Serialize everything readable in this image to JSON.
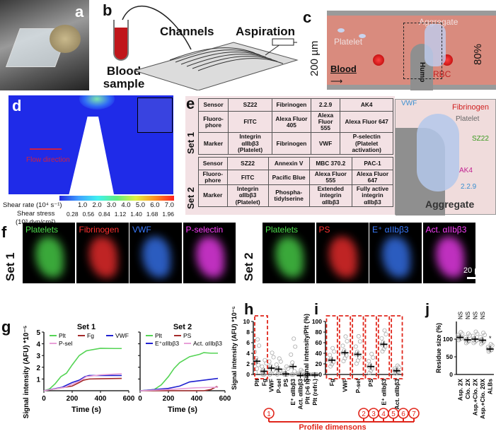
{
  "panels": {
    "a": {
      "label": "a"
    },
    "b": {
      "label": "b",
      "blood_sample": "Blood sample",
      "channels": "Channels",
      "aspiration": "Aspiration"
    },
    "c": {
      "label": "c",
      "platelet": "Platelet",
      "aggregate": "Aggregate",
      "blood": "Blood",
      "hump": "Hump",
      "rbc": "RBC",
      "height": "200 µm",
      "percent": "80%"
    },
    "d": {
      "label": "d",
      "flow_direction": "Flow direction",
      "shear_rate_label": "Shear rate (10⁴ s⁻¹)",
      "shear_rate_ticks": [
        "1.0",
        "2.0",
        "3.0",
        "4.0",
        "5.0",
        "6.0",
        "7.0"
      ],
      "shear_stress_label": "Shear stress",
      "shear_stress_unit": "(10³ dyn/cm²)",
      "shear_stress_ticks": [
        "0.28",
        "0.56",
        "0.84",
        "1.12",
        "1.40",
        "1.68",
        "1.96"
      ]
    },
    "e": {
      "label": "e",
      "set1": {
        "title": "Set 1",
        "rows": [
          [
            "Sensor",
            "SZ22",
            "Fibrinogen",
            "2.2.9",
            "AK4"
          ],
          [
            "Fluoro-phore",
            "FITC",
            "Alexa Fluor 405",
            "Alexa Fluor 555",
            "Alexa Fluor 647"
          ],
          [
            "Marker",
            "Integrin αIIbβ3 (Platelet)",
            "Fibrinogen",
            "VWF",
            "P-selectin (Platelet activation)"
          ]
        ]
      },
      "set2": {
        "title": "Set 2",
        "rows": [
          [
            "Sensor",
            "SZ22",
            "Annexin V",
            "MBC 370.2",
            "PAC-1"
          ],
          [
            "Fluoro-phore",
            "FITC",
            "Pacific Blue",
            "Alexa Fluor 555",
            "Alexa Fluor 647"
          ],
          [
            "Marker",
            "Integrin αIIbβ3 (Platelet)",
            "Phospha-tidylserine",
            "Extended integrin αIIbβ3",
            "Fully active integrin αIIbβ3"
          ]
        ]
      },
      "aggregate_title": "Aggregate",
      "aggregate_labels": {
        "vwf": "VWF",
        "fibrinogen": "Fibrinogen",
        "platelet": "Platelet",
        "sz22": "SZ22",
        "ak4": "AK4",
        "229": "2.2.9"
      }
    },
    "f": {
      "label": "f",
      "set1": {
        "title": "Set 1",
        "images": [
          {
            "title": "Platelets",
            "color": "#4ee04e"
          },
          {
            "title": "Fibrinogen",
            "color": "#ff3030"
          },
          {
            "title": "VWF",
            "color": "#3a7bff"
          },
          {
            "title": "P-selectin",
            "color": "#ff40ff"
          }
        ]
      },
      "set2": {
        "title": "Set 2",
        "images": [
          {
            "title": "Platelets",
            "color": "#4ee04e"
          },
          {
            "title": "PS",
            "color": "#ff3030"
          },
          {
            "title": "E⁺ αIIbβ3",
            "color": "#3a7bff"
          },
          {
            "title": "Act. αIIbβ3",
            "color": "#ff40ff"
          }
        ]
      },
      "scale_bar": "20 µm"
    },
    "g": {
      "label": "g"
    },
    "h": {
      "label": "h"
    },
    "i": {
      "label": "i"
    },
    "j": {
      "label": "j"
    },
    "profile": {
      "circles": [
        "1",
        "2",
        "3",
        "4",
        "5",
        "6",
        "7"
      ],
      "label": "Profile dimensons",
      "color": "#e0261b"
    }
  },
  "chart_data": [
    {
      "id": "g1",
      "type": "line",
      "title": "Set 1",
      "xlabel": "Time (s)",
      "ylabel": "Signal intensity (AFU) *10⁻⁵",
      "xlim": [
        0,
        600
      ],
      "ylim": [
        0,
        5
      ],
      "xticks": [
        0,
        200,
        400,
        600
      ],
      "yticks": [
        1,
        2,
        3,
        4,
        5
      ],
      "legend": "top",
      "series": [
        {
          "name": "Plt",
          "color": "#55d455",
          "x": [
            0,
            40,
            80,
            120,
            160,
            200,
            250,
            300,
            320,
            400,
            500,
            550
          ],
          "y": [
            0,
            0.15,
            0.6,
            1.2,
            1.5,
            2.2,
            3.0,
            3.4,
            3.45,
            3.62,
            3.6,
            3.6
          ]
        },
        {
          "name": "Fg",
          "color": "#a52a2a",
          "x": [
            0,
            100,
            200,
            250,
            280,
            320,
            400,
            550
          ],
          "y": [
            0,
            0.2,
            0.4,
            0.7,
            0.9,
            1.0,
            1.02,
            1.05
          ]
        },
        {
          "name": "VWF",
          "color": "#2020d0",
          "x": [
            0,
            130,
            200,
            250,
            290,
            320,
            400,
            550
          ],
          "y": [
            0,
            0.3,
            0.7,
            0.9,
            1.2,
            1.3,
            1.3,
            1.3
          ]
        },
        {
          "name": "P-sel",
          "color": "#e8a0d8",
          "x": [
            0,
            150,
            250,
            300,
            400,
            550
          ],
          "y": [
            0,
            0.3,
            0.8,
            1.2,
            1.35,
            1.45
          ]
        }
      ]
    },
    {
      "id": "g2",
      "type": "line",
      "title": "Set 2",
      "xlabel": "Time (s)",
      "xlim": [
        0,
        600
      ],
      "ylim": [
        0,
        5
      ],
      "xticks": [
        0,
        200,
        400,
        600
      ],
      "yticks": [
        1,
        2,
        3,
        4,
        5
      ],
      "legend": "top",
      "series": [
        {
          "name": "Plt",
          "color": "#55d455",
          "x": [
            0,
            100,
            150,
            200,
            240,
            280,
            350,
            420,
            450,
            500,
            550
          ],
          "y": [
            0,
            0.1,
            0.5,
            1.2,
            1.9,
            2.4,
            2.9,
            3.1,
            3.25,
            3.2,
            3.2
          ]
        },
        {
          "name": "PS",
          "color": "#a52a2a",
          "x": [
            0,
            450,
            500,
            540,
            550
          ],
          "y": [
            0,
            0,
            0.1,
            0.35,
            0.3
          ]
        },
        {
          "name": "E⁺αIIbβ3",
          "color": "#2020d0",
          "x": [
            0,
            200,
            280,
            350,
            450,
            550
          ],
          "y": [
            0,
            0.2,
            0.4,
            0.75,
            0.9,
            1.05
          ]
        },
        {
          "name": "Act. αIIbβ3",
          "color": "#e8a0d8",
          "x": [
            0,
            200,
            400,
            550
          ],
          "y": [
            0,
            0.1,
            0.25,
            0.3
          ]
        }
      ]
    },
    {
      "id": "h",
      "type": "scatter",
      "ylabel": "Signal intensity (AFU) *10⁻⁵",
      "ylim": [
        0,
        10
      ],
      "yticks": [
        0,
        2,
        4,
        6,
        8,
        10
      ],
      "categories": [
        "Plt",
        "Fg",
        "VWF",
        "P-sel",
        "PS",
        "E⁺ αIIbβ3",
        "Act. αIIbβ3",
        "Plt (>6 h)",
        "Plt (refri.)"
      ],
      "means": [
        2.5,
        0.6,
        1.2,
        1.0,
        0.1,
        1.5,
        -0.2,
        -0.1,
        -0.1
      ],
      "max": [
        7.2,
        3,
        4.5,
        3.3,
        1.7,
        7.5,
        1,
        0,
        0
      ]
    },
    {
      "id": "i",
      "type": "scatter",
      "ylabel": "Signal intensity/Plt (%)",
      "ylim": [
        0,
        100
      ],
      "yticks": [
        0,
        20,
        40,
        60,
        80,
        100
      ],
      "categories": [
        "Fg",
        "VWF",
        "P-sel",
        "PS",
        "E⁺ αIIbβ3",
        "Act. αIIbβ3"
      ],
      "means": [
        27,
        41,
        38,
        15,
        57,
        7
      ],
      "max": [
        53,
        76,
        77,
        42,
        87,
        18
      ]
    },
    {
      "id": "j",
      "type": "scatter",
      "ylabel": "Residue size (%)",
      "ylim": [
        0,
        150
      ],
      "yticks": [
        0,
        50,
        100
      ],
      "categories": [
        "Asp. 2X",
        "Clo. 2X",
        "Asp.+Clo. 2X",
        "Asp.+Clo. 20X",
        "ALBs"
      ],
      "means": [
        105,
        98,
        100,
        97,
        72
      ],
      "max": [
        122,
        118,
        124,
        121,
        88
      ],
      "annotations": [
        "NS",
        "NS",
        "NS",
        "NS",
        "*"
      ]
    }
  ]
}
